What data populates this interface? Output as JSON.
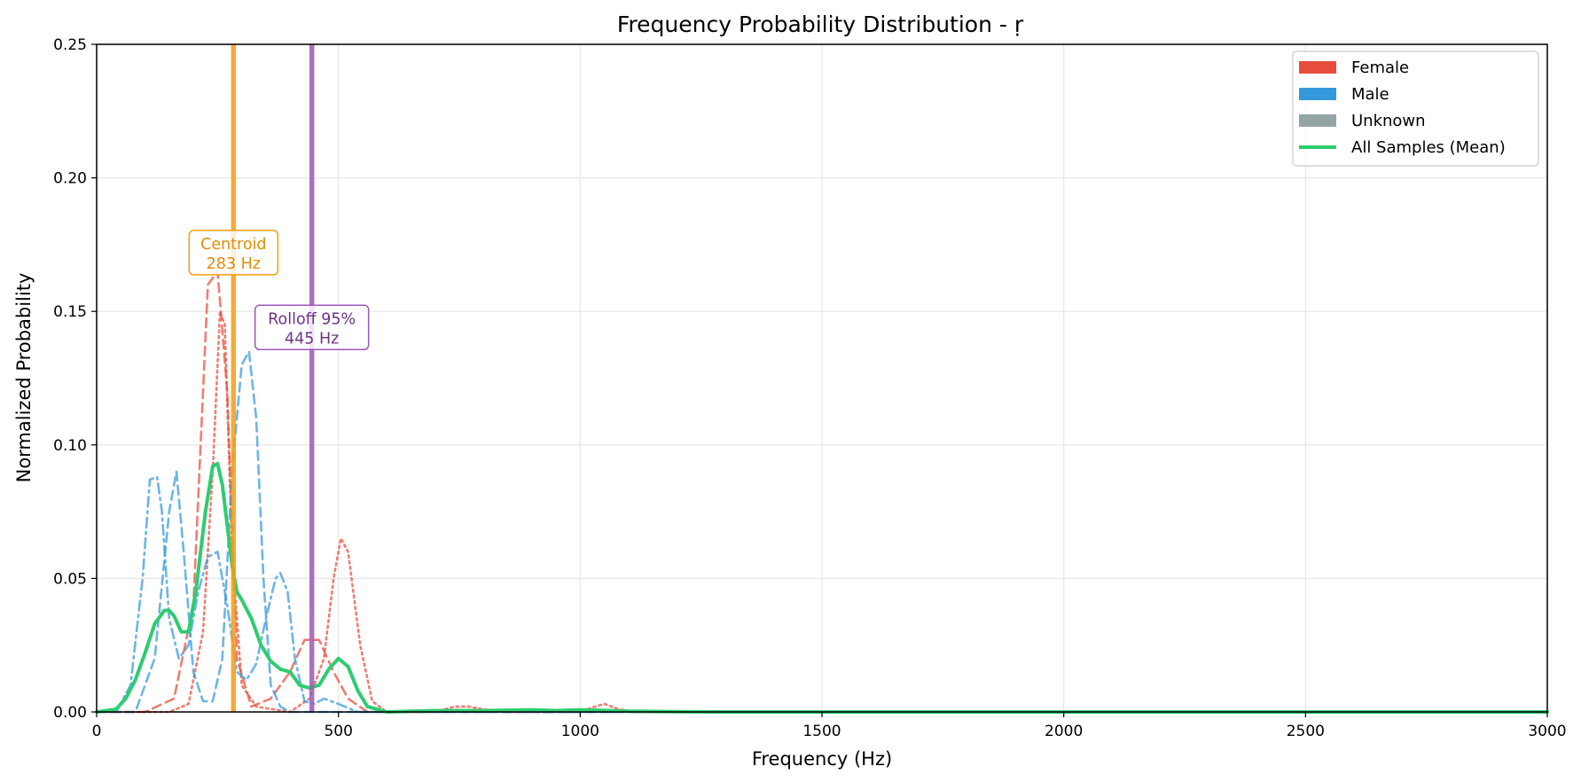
{
  "chart_data": {
    "type": "line",
    "title": "Frequency Probability Distribution - ṛ",
    "xlabel": "Frequency (Hz)",
    "ylabel": "Normalized Probability",
    "xlim": [
      0,
      3000
    ],
    "ylim": [
      0,
      0.25
    ],
    "xticks": [
      0,
      500,
      1000,
      1500,
      2000,
      2500,
      3000
    ],
    "yticks": [
      0.0,
      0.05,
      0.1,
      0.15,
      0.2,
      0.25
    ],
    "xtick_labels": [
      "0",
      "500",
      "1000",
      "1500",
      "2000",
      "2500",
      "3000"
    ],
    "ytick_labels": [
      "0.00",
      "0.05",
      "0.10",
      "0.15",
      "0.20",
      "0.25"
    ],
    "grid": true,
    "legend_position": "top-right",
    "legend": [
      {
        "label": "Female",
        "color": "#e74c3c",
        "kind": "patch"
      },
      {
        "label": "Male",
        "color": "#3498db",
        "kind": "patch"
      },
      {
        "label": "Unknown",
        "color": "#95a5a6",
        "kind": "patch"
      },
      {
        "label": "All Samples (Mean)",
        "color": "#2ecc71",
        "kind": "line"
      }
    ],
    "series": [
      {
        "group": "Female",
        "color": "#e74c3c",
        "dash": "dashed",
        "x": [
          0,
          100,
          160,
          200,
          230,
          250,
          270,
          290,
          320,
          360,
          400,
          430,
          460,
          490,
          520,
          560,
          600,
          3000
        ],
        "y": [
          0,
          0.0,
          0.005,
          0.04,
          0.16,
          0.165,
          0.12,
          0.02,
          0.002,
          0.005,
          0.015,
          0.027,
          0.027,
          0.015,
          0.005,
          0.0,
          0.0,
          0.0
        ]
      },
      {
        "group": "Female",
        "color": "#e74c3c",
        "dash": "dotted",
        "x": [
          0,
          150,
          190,
          220,
          240,
          255,
          265,
          280,
          300,
          330,
          400,
          440,
          470,
          490,
          505,
          520,
          545,
          570,
          600,
          700,
          740,
          770,
          800,
          850,
          1000,
          1030,
          1050,
          1080,
          1120,
          3000
        ],
        "y": [
          0,
          0.0,
          0.003,
          0.03,
          0.09,
          0.15,
          0.145,
          0.06,
          0.01,
          0.002,
          0.0,
          0.005,
          0.02,
          0.05,
          0.065,
          0.06,
          0.025,
          0.004,
          0.0,
          0.0,
          0.002,
          0.002,
          0.001,
          0.0,
          0.0,
          0.002,
          0.003,
          0.001,
          0.0,
          0.0
        ]
      },
      {
        "group": "Male",
        "color": "#3498db",
        "dash": "dashed",
        "x": [
          0,
          80,
          120,
          150,
          165,
          180,
          200,
          220,
          240,
          260,
          280,
          300,
          315,
          330,
          345,
          360,
          380,
          400,
          450,
          500,
          3000
        ],
        "y": [
          0,
          0.0,
          0.02,
          0.075,
          0.09,
          0.06,
          0.015,
          0.004,
          0.004,
          0.02,
          0.09,
          0.13,
          0.135,
          0.11,
          0.05,
          0.01,
          0.002,
          0.0,
          0.0,
          0.0,
          0.0
        ]
      },
      {
        "group": "Male",
        "color": "#3498db",
        "dash": "dashdot",
        "x": [
          0,
          40,
          70,
          95,
          110,
          125,
          135,
          150,
          170,
          190,
          210,
          230,
          250,
          270,
          290,
          310,
          330,
          350,
          370,
          380,
          395,
          410,
          430,
          450,
          470,
          500,
          540,
          3000
        ],
        "y": [
          0,
          0.0,
          0.01,
          0.05,
          0.087,
          0.088,
          0.075,
          0.035,
          0.02,
          0.025,
          0.045,
          0.058,
          0.06,
          0.04,
          0.015,
          0.012,
          0.018,
          0.035,
          0.05,
          0.052,
          0.045,
          0.02,
          0.004,
          0.003,
          0.005,
          0.003,
          0.0,
          0.0
        ]
      },
      {
        "group": "Mean",
        "color": "#2ecc71",
        "dash": "solid",
        "width": 4,
        "x": [
          0,
          40,
          60,
          80,
          100,
          120,
          140,
          150,
          160,
          175,
          190,
          205,
          215,
          225,
          240,
          250,
          260,
          270,
          280,
          290,
          300,
          320,
          340,
          360,
          380,
          400,
          420,
          440,
          460,
          480,
          500,
          520,
          540,
          560,
          580,
          600,
          700,
          800,
          900,
          950,
          1000,
          1050,
          1100,
          1200,
          1300,
          1500,
          3000
        ],
        "y": [
          0,
          0.001,
          0.005,
          0.012,
          0.022,
          0.033,
          0.038,
          0.038,
          0.036,
          0.03,
          0.03,
          0.045,
          0.06,
          0.075,
          0.092,
          0.093,
          0.085,
          0.07,
          0.055,
          0.045,
          0.042,
          0.035,
          0.025,
          0.019,
          0.016,
          0.015,
          0.01,
          0.009,
          0.01,
          0.016,
          0.02,
          0.017,
          0.008,
          0.002,
          0.001,
          0.0,
          0.0005,
          0.0005,
          0.0008,
          0.0005,
          0.0008,
          0.0006,
          0.0003,
          0.0001,
          0.0,
          0.0,
          0.0
        ]
      }
    ],
    "vlines": [
      {
        "name": "centroid",
        "x": 283,
        "color": "#f39c12",
        "label_line1": "Centroid",
        "label_line2": "283 Hz",
        "label_y": 0.172,
        "text_color": "#e08e0b"
      },
      {
        "name": "rolloff",
        "x": 445,
        "color": "#9b59b6",
        "label_line1": "Rolloff 95%",
        "label_line2": "445 Hz",
        "label_y": 0.144,
        "text_color": "#6c3483"
      }
    ]
  }
}
